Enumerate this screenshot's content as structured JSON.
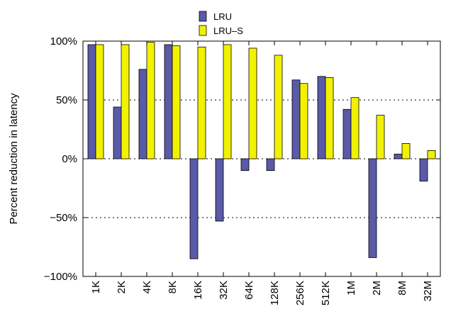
{
  "chart_data": {
    "type": "bar",
    "title": "",
    "xlabel": "",
    "ylabel": "Percent reduction in latency",
    "ylim": [
      -100,
      100
    ],
    "y_ticks": [
      {
        "value": 100,
        "label": "100%"
      },
      {
        "value": 50,
        "label": "50%"
      },
      {
        "value": 0,
        "label": "0%"
      },
      {
        "value": -50,
        "label": "−50%"
      },
      {
        "value": -100,
        "label": "−100%"
      }
    ],
    "grid": "horizontal dotted",
    "legend_position": "top-center",
    "categories": [
      "1K",
      "2K",
      "4K",
      "8K",
      "16K",
      "32K",
      "64K",
      "128K",
      "256K",
      "512K",
      "1M",
      "2M",
      "8M",
      "32M"
    ],
    "series": [
      {
        "name": "LRU",
        "color": "#5a5aa8",
        "values": [
          97,
          44,
          76,
          97,
          -85,
          -53,
          -10,
          -10,
          67,
          70,
          42,
          -84,
          4,
          -19
        ]
      },
      {
        "name": "LRU–S",
        "color": "#f2f200",
        "values": [
          97,
          97,
          99,
          96,
          95,
          97,
          94,
          88,
          64,
          69,
          52,
          37,
          13,
          7
        ]
      }
    ]
  }
}
